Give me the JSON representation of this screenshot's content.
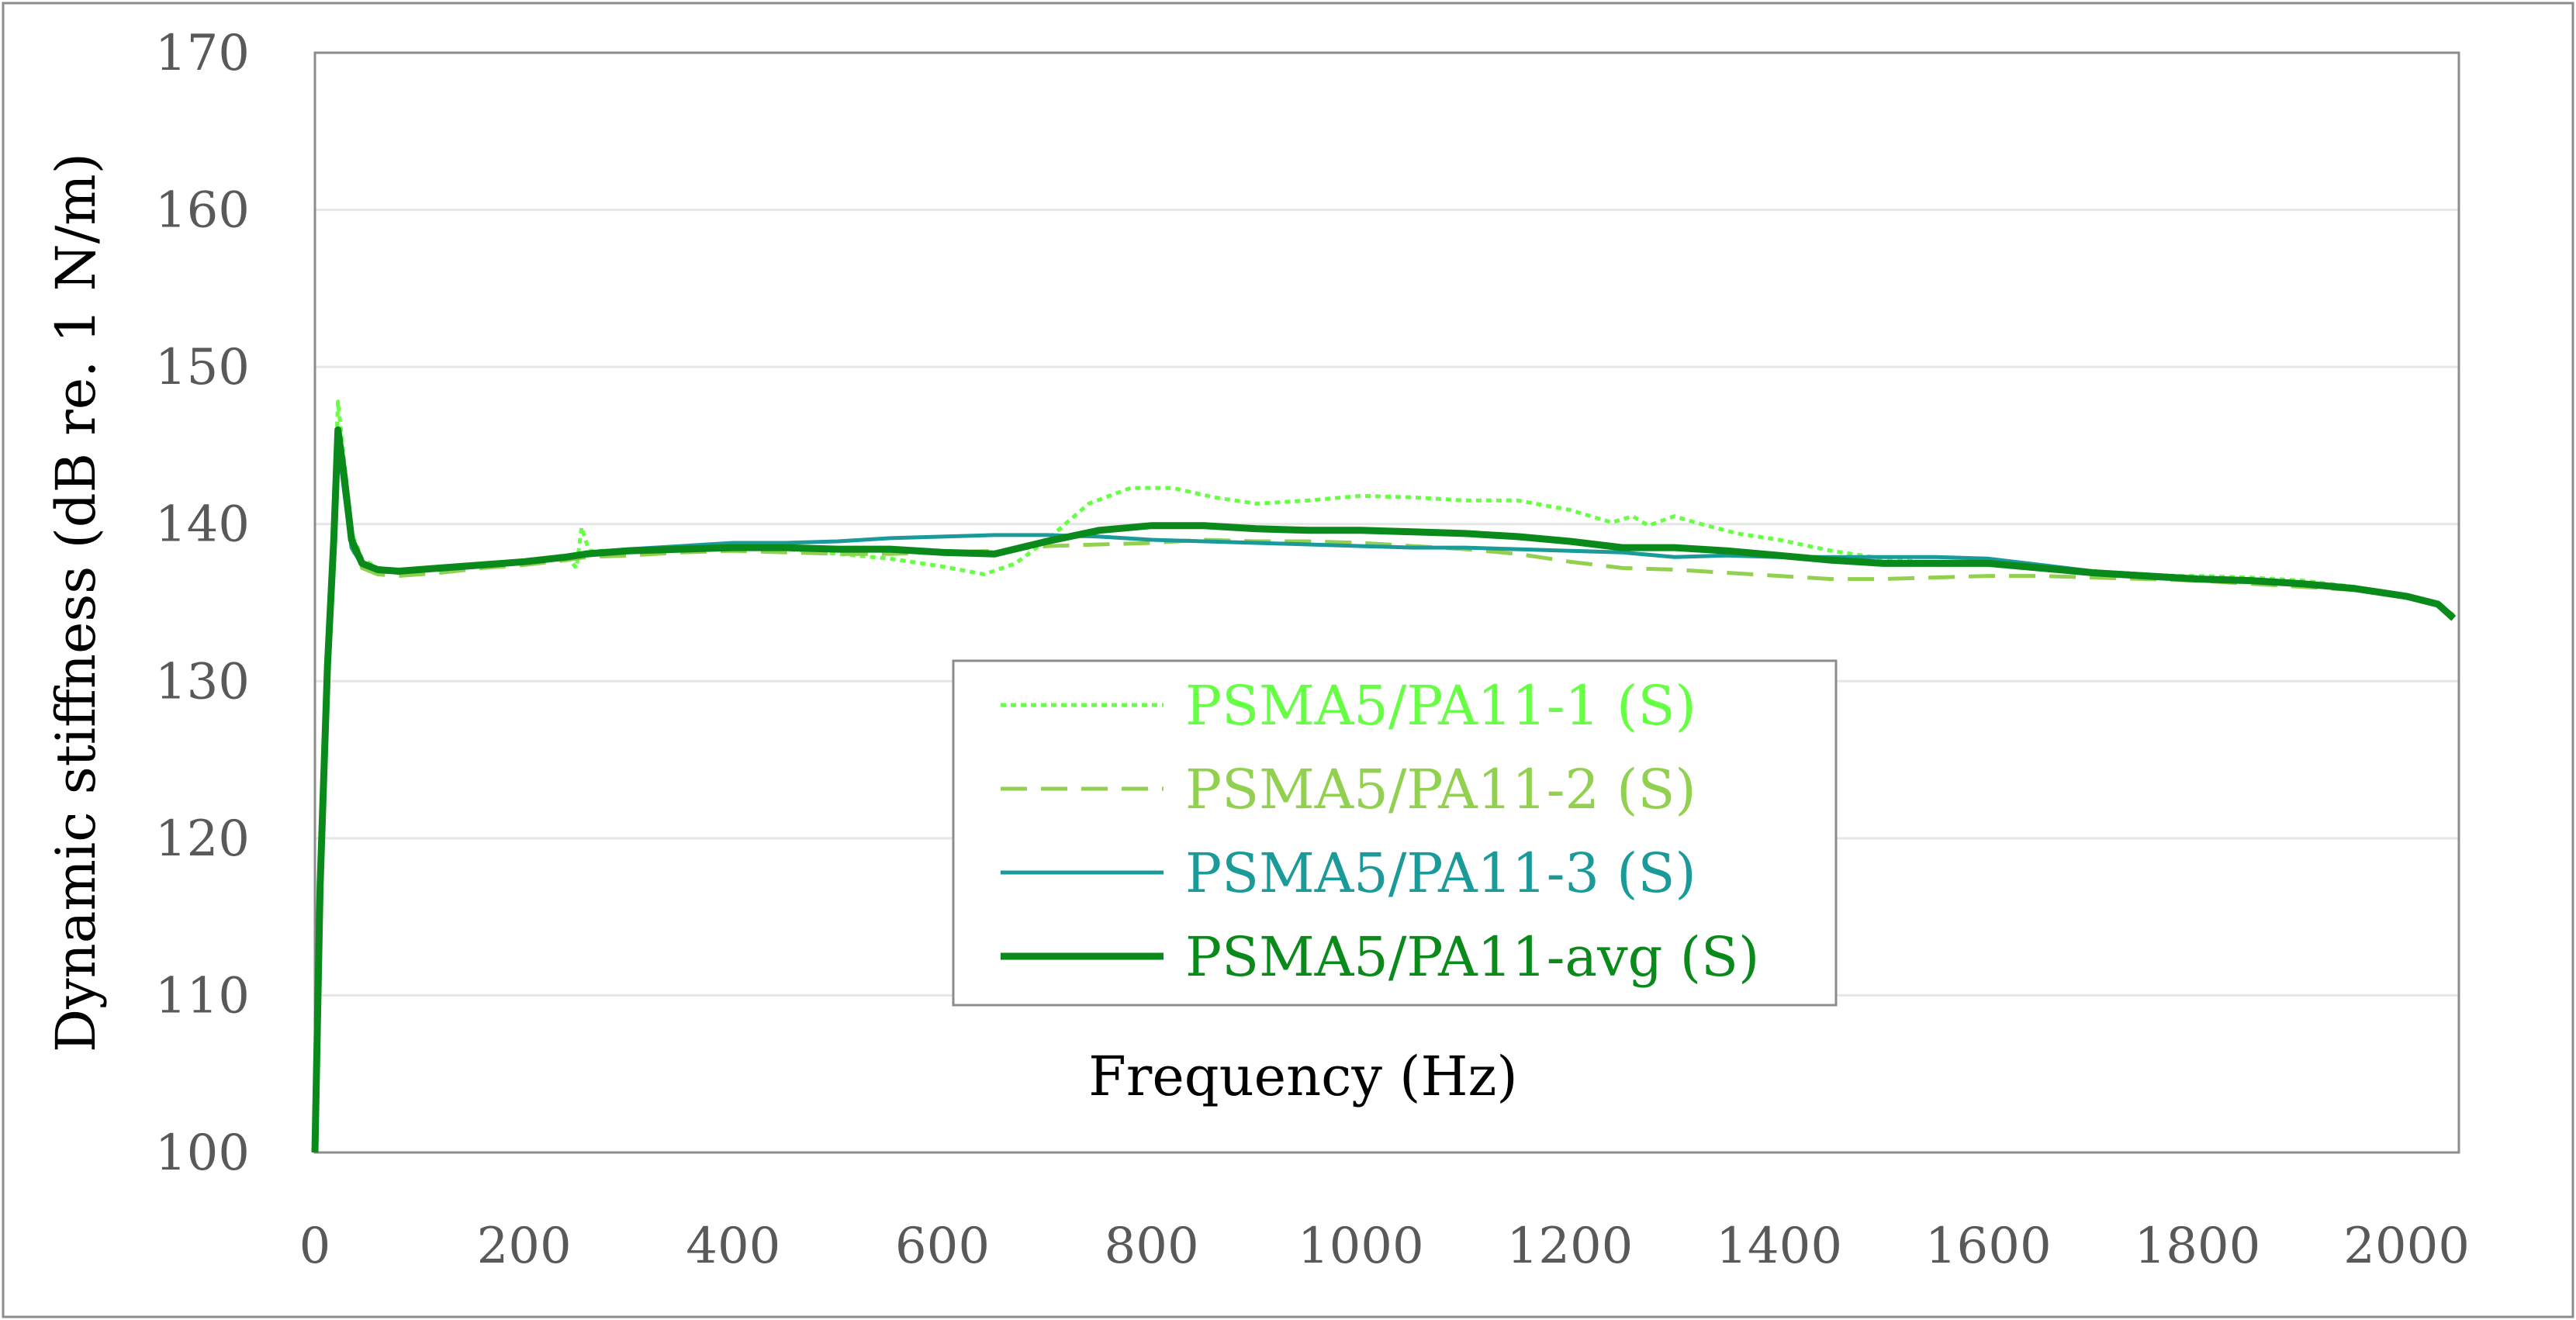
{
  "chart_data": {
    "type": "line",
    "title": "",
    "xlabel": "Frequency (Hz)",
    "ylabel": "Dynamic stiffness (dB re. 1 N/m)",
    "xlim": [
      0,
      2050
    ],
    "ylim": [
      100,
      170
    ],
    "xticks": [
      0,
      200,
      400,
      600,
      800,
      1000,
      1200,
      1400,
      1600,
      1800,
      2000
    ],
    "yticks": [
      100,
      110,
      120,
      130,
      140,
      150,
      160,
      170
    ],
    "grid": "horizontal",
    "legend_position": "center",
    "series": [
      {
        "name": "PSMA5/PA11-1 (S)",
        "color": "#66ff44",
        "style": "dotted",
        "points": [
          [
            0,
            100
          ],
          [
            5,
            118
          ],
          [
            12,
            132
          ],
          [
            18,
            140
          ],
          [
            22,
            147.8
          ],
          [
            28,
            144
          ],
          [
            35,
            139.5
          ],
          [
            45,
            137.8
          ],
          [
            60,
            137.2
          ],
          [
            80,
            137.1
          ],
          [
            120,
            137.2
          ],
          [
            160,
            137.4
          ],
          [
            200,
            137.7
          ],
          [
            240,
            138.0
          ],
          [
            250,
            137.2
          ],
          [
            255,
            139.8
          ],
          [
            262,
            138.3
          ],
          [
            300,
            138.3
          ],
          [
            350,
            138.4
          ],
          [
            400,
            138.5
          ],
          [
            450,
            138.4
          ],
          [
            500,
            138.1
          ],
          [
            550,
            137.8
          ],
          [
            600,
            137.3
          ],
          [
            640,
            136.8
          ],
          [
            670,
            137.5
          ],
          [
            700,
            139.0
          ],
          [
            740,
            141.3
          ],
          [
            780,
            142.3
          ],
          [
            820,
            142.3
          ],
          [
            860,
            141.7
          ],
          [
            900,
            141.3
          ],
          [
            950,
            141.5
          ],
          [
            1000,
            141.8
          ],
          [
            1050,
            141.7
          ],
          [
            1100,
            141.5
          ],
          [
            1150,
            141.5
          ],
          [
            1200,
            140.9
          ],
          [
            1240,
            140.1
          ],
          [
            1260,
            140.5
          ],
          [
            1275,
            139.9
          ],
          [
            1300,
            140.5
          ],
          [
            1320,
            140.1
          ],
          [
            1360,
            139.4
          ],
          [
            1400,
            139.0
          ],
          [
            1450,
            138.3
          ],
          [
            1500,
            137.8
          ],
          [
            1550,
            137.5
          ],
          [
            1600,
            137.4
          ],
          [
            1650,
            137.1
          ],
          [
            1700,
            136.8
          ],
          [
            1750,
            136.7
          ],
          [
            1800,
            136.7
          ],
          [
            1850,
            136.6
          ],
          [
            1900,
            136.4
          ],
          [
            1950,
            136.0
          ],
          [
            2000,
            135.3
          ],
          [
            2030,
            134.8
          ],
          [
            2045,
            134.0
          ]
        ]
      },
      {
        "name": "PSMA5/PA11-2 (S)",
        "color": "#92d050",
        "style": "dashed",
        "points": [
          [
            0,
            100
          ],
          [
            5,
            117
          ],
          [
            12,
            131
          ],
          [
            18,
            139
          ],
          [
            22,
            145.5
          ],
          [
            28,
            142.5
          ],
          [
            35,
            138.5
          ],
          [
            45,
            137.2
          ],
          [
            60,
            136.8
          ],
          [
            80,
            136.7
          ],
          [
            120,
            136.9
          ],
          [
            160,
            137.2
          ],
          [
            200,
            137.4
          ],
          [
            240,
            137.7
          ],
          [
            260,
            137.9
          ],
          [
            300,
            138.0
          ],
          [
            350,
            138.2
          ],
          [
            400,
            138.3
          ],
          [
            450,
            138.2
          ],
          [
            500,
            138.1
          ],
          [
            550,
            138.1
          ],
          [
            600,
            138.2
          ],
          [
            650,
            138.3
          ],
          [
            700,
            138.6
          ],
          [
            750,
            138.7
          ],
          [
            800,
            138.8
          ],
          [
            850,
            139.0
          ],
          [
            900,
            138.9
          ],
          [
            950,
            138.9
          ],
          [
            1000,
            138.8
          ],
          [
            1050,
            138.6
          ],
          [
            1100,
            138.4
          ],
          [
            1150,
            138.1
          ],
          [
            1200,
            137.6
          ],
          [
            1250,
            137.2
          ],
          [
            1300,
            137.1
          ],
          [
            1350,
            136.9
          ],
          [
            1400,
            136.7
          ],
          [
            1450,
            136.5
          ],
          [
            1500,
            136.5
          ],
          [
            1550,
            136.6
          ],
          [
            1600,
            136.7
          ],
          [
            1650,
            136.7
          ],
          [
            1700,
            136.6
          ],
          [
            1750,
            136.5
          ],
          [
            1800,
            136.4
          ],
          [
            1850,
            136.2
          ],
          [
            1900,
            136.0
          ],
          [
            1950,
            135.8
          ],
          [
            2000,
            135.4
          ],
          [
            2030,
            134.9
          ],
          [
            2045,
            134.2
          ]
        ]
      },
      {
        "name": "PSMA5/PA11-3 (S)",
        "color": "#1b9a9a",
        "style": "solid",
        "points": [
          [
            0,
            100
          ],
          [
            5,
            117
          ],
          [
            12,
            131
          ],
          [
            18,
            139
          ],
          [
            22,
            145.2
          ],
          [
            28,
            142
          ],
          [
            35,
            138.5
          ],
          [
            45,
            137.4
          ],
          [
            60,
            137.1
          ],
          [
            80,
            137.0
          ],
          [
            120,
            137.1
          ],
          [
            160,
            137.3
          ],
          [
            200,
            137.6
          ],
          [
            240,
            137.9
          ],
          [
            260,
            138.2
          ],
          [
            300,
            138.4
          ],
          [
            350,
            138.6
          ],
          [
            400,
            138.8
          ],
          [
            450,
            138.8
          ],
          [
            500,
            138.9
          ],
          [
            550,
            139.1
          ],
          [
            600,
            139.2
          ],
          [
            650,
            139.3
          ],
          [
            700,
            139.3
          ],
          [
            750,
            139.2
          ],
          [
            800,
            139.0
          ],
          [
            850,
            138.9
          ],
          [
            900,
            138.8
          ],
          [
            950,
            138.7
          ],
          [
            1000,
            138.6
          ],
          [
            1050,
            138.5
          ],
          [
            1100,
            138.5
          ],
          [
            1150,
            138.4
          ],
          [
            1200,
            138.3
          ],
          [
            1250,
            138.2
          ],
          [
            1300,
            137.9
          ],
          [
            1350,
            138.0
          ],
          [
            1400,
            137.9
          ],
          [
            1450,
            137.9
          ],
          [
            1500,
            137.9
          ],
          [
            1550,
            137.9
          ],
          [
            1600,
            137.8
          ],
          [
            1650,
            137.4
          ],
          [
            1700,
            137.0
          ],
          [
            1750,
            136.8
          ],
          [
            1800,
            136.6
          ],
          [
            1850,
            136.5
          ],
          [
            1900,
            136.3
          ],
          [
            1950,
            136.0
          ],
          [
            2000,
            135.3
          ],
          [
            2030,
            134.9
          ],
          [
            2045,
            134.1
          ]
        ]
      },
      {
        "name": "PSMA5/PA11-avg (S)",
        "color": "#0a8a1a",
        "style": "solid-thick",
        "points": [
          [
            0,
            100
          ],
          [
            5,
            117
          ],
          [
            12,
            131
          ],
          [
            18,
            139
          ],
          [
            22,
            146.0
          ],
          [
            28,
            143
          ],
          [
            35,
            139
          ],
          [
            45,
            137.5
          ],
          [
            60,
            137.1
          ],
          [
            80,
            137.0
          ],
          [
            120,
            137.2
          ],
          [
            160,
            137.4
          ],
          [
            200,
            137.6
          ],
          [
            240,
            137.9
          ],
          [
            260,
            138.1
          ],
          [
            300,
            138.3
          ],
          [
            350,
            138.4
          ],
          [
            400,
            138.5
          ],
          [
            450,
            138.5
          ],
          [
            500,
            138.4
          ],
          [
            550,
            138.4
          ],
          [
            600,
            138.2
          ],
          [
            650,
            138.1
          ],
          [
            700,
            138.9
          ],
          [
            750,
            139.6
          ],
          [
            800,
            139.9
          ],
          [
            850,
            139.9
          ],
          [
            900,
            139.7
          ],
          [
            950,
            139.6
          ],
          [
            1000,
            139.6
          ],
          [
            1050,
            139.5
          ],
          [
            1100,
            139.4
          ],
          [
            1150,
            139.2
          ],
          [
            1200,
            138.9
          ],
          [
            1250,
            138.5
          ],
          [
            1300,
            138.5
          ],
          [
            1350,
            138.3
          ],
          [
            1400,
            138.0
          ],
          [
            1450,
            137.7
          ],
          [
            1500,
            137.5
          ],
          [
            1550,
            137.5
          ],
          [
            1600,
            137.5
          ],
          [
            1650,
            137.2
          ],
          [
            1700,
            136.9
          ],
          [
            1750,
            136.7
          ],
          [
            1800,
            136.5
          ],
          [
            1850,
            136.4
          ],
          [
            1900,
            136.2
          ],
          [
            1950,
            135.9
          ],
          [
            2000,
            135.4
          ],
          [
            2030,
            134.9
          ],
          [
            2045,
            134.0
          ]
        ]
      }
    ]
  }
}
